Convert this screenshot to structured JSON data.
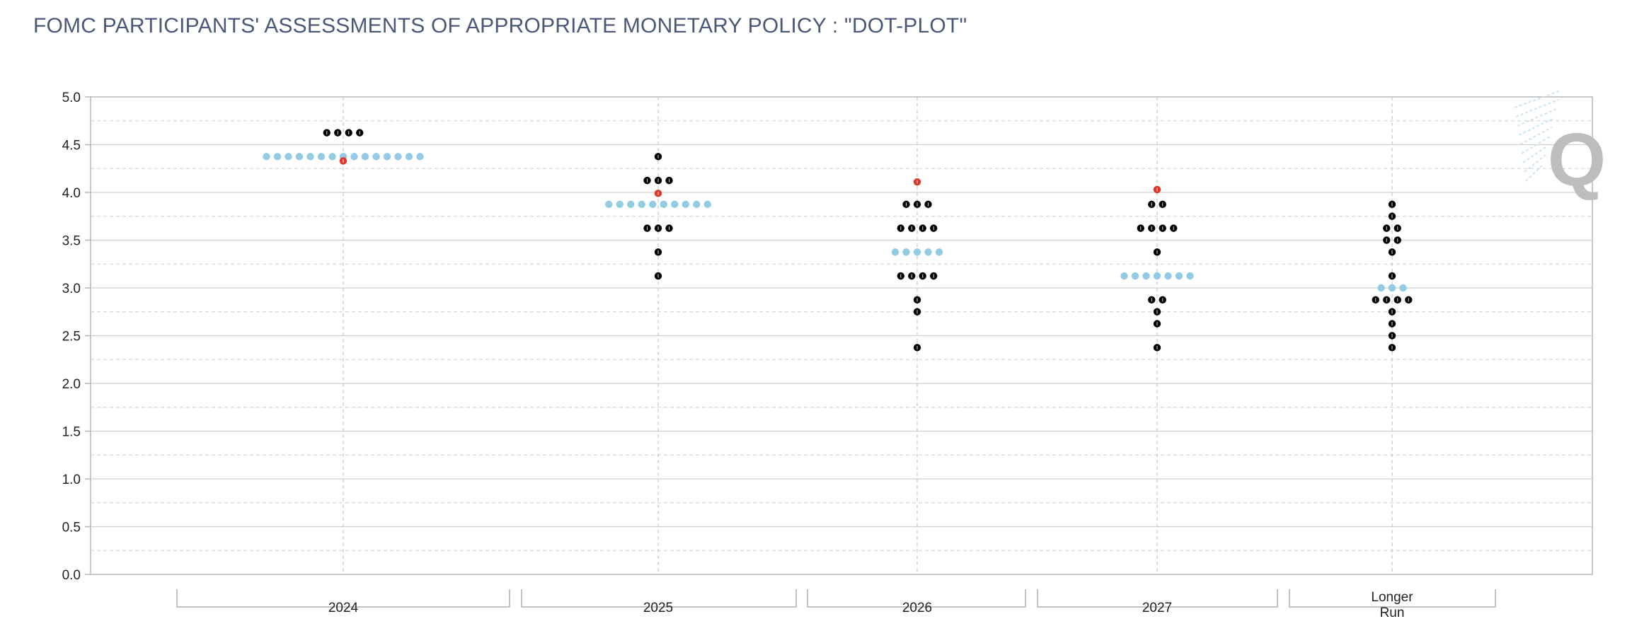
{
  "title": "FOMC PARTICIPANTS' ASSESSMENTS OF APPROPRIATE MONETARY POLICY : \"DOT-PLOT\"",
  "watermark": "Q",
  "colors": {
    "dot": "#000000",
    "median": "#92cbe3",
    "actual": "#e0352b",
    "grid": "#c9c9c9",
    "axis": "#b5b5b5",
    "title": "#4a5878"
  },
  "chart_data": {
    "type": "scatter",
    "title": "FOMC PARTICIPANTS' ASSESSMENTS OF APPROPRIATE MONETARY POLICY : \"DOT-PLOT\"",
    "xlabel": "",
    "ylabel": "",
    "ylim": [
      0,
      5
    ],
    "y_ticks": [
      "0.0",
      "0.5",
      "1.0",
      "1.5",
      "2.0",
      "2.5",
      "3.0",
      "3.5",
      "4.0",
      "4.5",
      "5.0"
    ],
    "grid": true,
    "categories": [
      "2024",
      "2025",
      "2026",
      "2027",
      "Longer Run"
    ],
    "series": [
      {
        "role": "participant",
        "points": [
          {
            "x": "2024",
            "y": 4.625,
            "count": 4
          },
          {
            "x": "2025",
            "y": 4.375,
            "count": 1
          },
          {
            "x": "2025",
            "y": 4.125,
            "count": 3
          },
          {
            "x": "2025",
            "y": 3.625,
            "count": 3
          },
          {
            "x": "2025",
            "y": 3.375,
            "count": 1
          },
          {
            "x": "2025",
            "y": 3.125,
            "count": 1
          },
          {
            "x": "2026",
            "y": 3.875,
            "count": 3
          },
          {
            "x": "2026",
            "y": 3.625,
            "count": 4
          },
          {
            "x": "2026",
            "y": 3.125,
            "count": 4
          },
          {
            "x": "2026",
            "y": 2.875,
            "count": 1
          },
          {
            "x": "2026",
            "y": 2.75,
            "count": 1
          },
          {
            "x": "2026",
            "y": 2.375,
            "count": 1
          },
          {
            "x": "2027",
            "y": 3.875,
            "count": 2
          },
          {
            "x": "2027",
            "y": 3.625,
            "count": 4
          },
          {
            "x": "2027",
            "y": 3.375,
            "count": 1
          },
          {
            "x": "2027",
            "y": 2.875,
            "count": 2
          },
          {
            "x": "2027",
            "y": 2.75,
            "count": 1
          },
          {
            "x": "2027",
            "y": 2.625,
            "count": 1
          },
          {
            "x": "2027",
            "y": 2.375,
            "count": 1
          },
          {
            "x": "Longer Run",
            "y": 3.875,
            "count": 1
          },
          {
            "x": "Longer Run",
            "y": 3.75,
            "count": 1
          },
          {
            "x": "Longer Run",
            "y": 3.625,
            "count": 2
          },
          {
            "x": "Longer Run",
            "y": 3.5,
            "count": 2
          },
          {
            "x": "Longer Run",
            "y": 3.375,
            "count": 1
          },
          {
            "x": "Longer Run",
            "y": 3.125,
            "count": 1
          },
          {
            "x": "Longer Run",
            "y": 2.875,
            "count": 4
          },
          {
            "x": "Longer Run",
            "y": 2.75,
            "count": 1
          },
          {
            "x": "Longer Run",
            "y": 2.625,
            "count": 1
          },
          {
            "x": "Longer Run",
            "y": 2.5,
            "count": 1
          },
          {
            "x": "Longer Run",
            "y": 2.375,
            "count": 1
          }
        ]
      },
      {
        "role": "median",
        "points": [
          {
            "x": "2024",
            "y": 4.375,
            "count": 15
          },
          {
            "x": "2025",
            "y": 3.875,
            "count": 10
          },
          {
            "x": "2026",
            "y": 3.375,
            "count": 5
          },
          {
            "x": "2027",
            "y": 3.125,
            "count": 7
          },
          {
            "x": "Longer Run",
            "y": 3.0,
            "count": 3
          }
        ]
      },
      {
        "role": "highlight",
        "points": [
          {
            "x": "2024",
            "y": 4.33,
            "count": 1
          },
          {
            "x": "2025",
            "y": 3.99,
            "count": 1
          },
          {
            "x": "2026",
            "y": 4.11,
            "count": 1
          },
          {
            "x": "2027",
            "y": 4.03,
            "count": 1
          }
        ]
      }
    ]
  }
}
